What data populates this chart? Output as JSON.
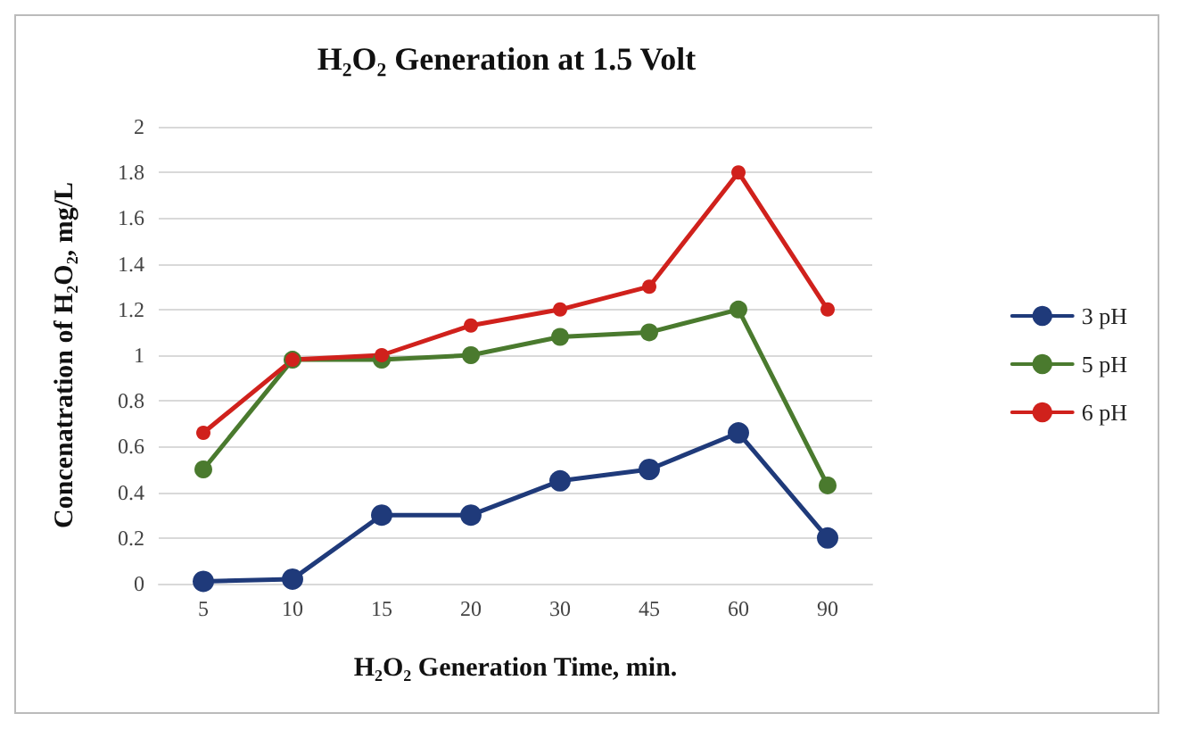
{
  "chart_data": {
    "type": "line",
    "title": "H₂O₂ Generation at 1.5 Volt",
    "xlabel": "H₂O₂ Generation Time, min.",
    "ylabel": "Concenatration of H₂O₂, mg/L",
    "categories": [
      "5",
      "10",
      "15",
      "20",
      "30",
      "45",
      "60",
      "90"
    ],
    "series": [
      {
        "name": "3 pH",
        "color": "#1f3a7a",
        "values": [
          0.01,
          0.02,
          0.3,
          0.3,
          0.45,
          0.5,
          0.66,
          0.2
        ]
      },
      {
        "name": "5 pH",
        "color": "#4a7a2e",
        "values": [
          0.5,
          0.98,
          0.98,
          1.0,
          1.08,
          1.1,
          1.2,
          0.43
        ]
      },
      {
        "name": "6 pH",
        "color": "#d0211c",
        "values": [
          0.66,
          0.98,
          1.0,
          1.13,
          1.2,
          1.3,
          1.8,
          1.2
        ]
      }
    ],
    "ylim": [
      0,
      2
    ],
    "yticks": [
      0,
      0.2,
      0.4,
      0.6,
      0.8,
      1,
      1.2,
      1.4,
      1.6,
      1.8,
      2
    ],
    "grid": "y",
    "legend": "right",
    "marker": "circle",
    "line_style": "solid"
  }
}
